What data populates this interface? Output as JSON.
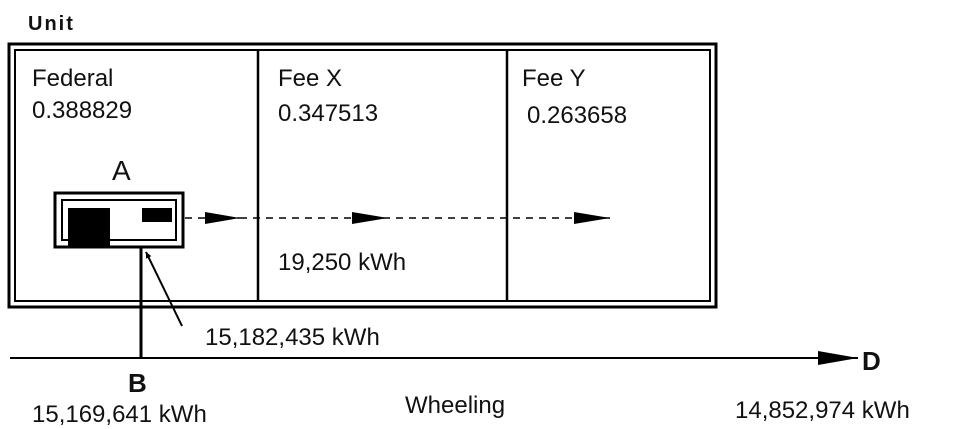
{
  "header": {
    "title": "Unit"
  },
  "zones": [
    {
      "name": "Federal",
      "value": "0.388829"
    },
    {
      "name": "Fee X",
      "value": "0.347513"
    },
    {
      "name": "Fee Y",
      "value": "0.263658"
    }
  ],
  "meter": {
    "label": "A"
  },
  "flows": {
    "internal": "19,250 kWh",
    "meter_reading": "15,182,435 kWh",
    "point_b": {
      "label": "B",
      "value": "15,169,641 kWh"
    },
    "line": "Wheeling",
    "point_d": {
      "label": "D",
      "value": "14,852,974 kWh"
    }
  }
}
